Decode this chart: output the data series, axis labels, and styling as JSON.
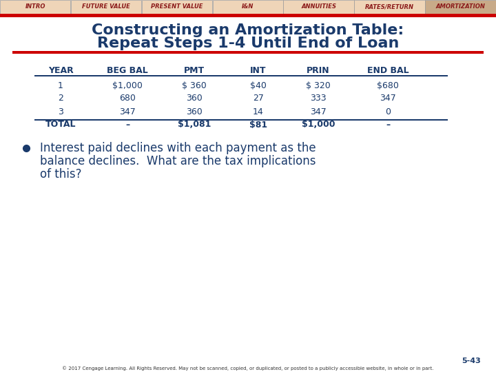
{
  "nav_tabs": [
    "INTRO",
    "FUTURE VALUE",
    "PRESENT VALUE",
    "I&N",
    "ANNUITIES",
    "RATES/RETURN",
    "AMORTIZATION"
  ],
  "nav_bg": "#efd5b8",
  "nav_active_bg": "#c8aa88",
  "nav_active": "AMORTIZATION",
  "nav_text_color": "#8b1a1a",
  "nav_bar_color": "#cc0000",
  "title_line1": "Constructing an Amortization Table:",
  "title_line2": "Repeat Steps 1-4 Until End of Loan",
  "title_color": "#1a3a6b",
  "red_line_color": "#cc0000",
  "table_header": [
    "YEAR",
    "BEG BAL",
    "PMT",
    "INT",
    "PRIN",
    "END BAL"
  ],
  "table_rows": [
    [
      "1",
      "$1,000",
      "$ 360",
      "$40",
      "$ 320",
      "$680"
    ],
    [
      "2",
      "680",
      "360",
      "27",
      "333",
      "347"
    ],
    [
      "3",
      "347",
      "360",
      "14",
      "347",
      "0"
    ],
    [
      "TOTAL",
      "–",
      "$1,081",
      "$81",
      "$1,000",
      "–"
    ]
  ],
  "table_color": "#1a3a6b",
  "bullet_text_line1": "Interest paid declines with each payment as the",
  "bullet_text_line2": "balance declines.  What are the tax implications",
  "bullet_text_line3": "of this?",
  "bullet_color": "#1a3a6b",
  "footer_text": "5-43",
  "footer_sub": "© 2017 Cengage Learning. All Rights Reserved. May not be scanned, copied, or duplicated, or posted to a publicly accessible website, in whole or in part.",
  "bg_color": "#ffffff"
}
